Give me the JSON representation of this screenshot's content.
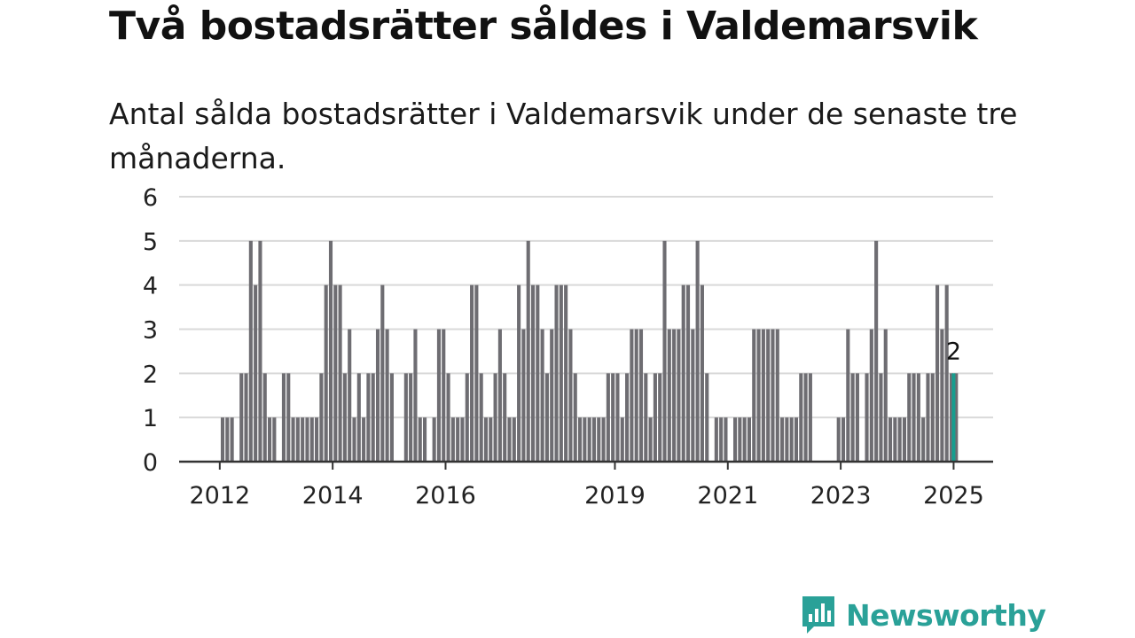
{
  "title": "Två bostadsrätter såldes i Valdemarsvik",
  "subtitle": "Antal sålda bostadsrätter i Valdemarsvik under de senaste tre månaderna.",
  "brand": {
    "name": "Newsworthy",
    "color": "#2aa198",
    "icon": "newsworthy-chart-bubble-icon"
  },
  "colors": {
    "bar": "#6e6d72",
    "highlight": "#179e8f",
    "grid": "#d9d9d9",
    "axis": "#333333"
  },
  "chart_data": {
    "type": "bar",
    "ylim": [
      0,
      6
    ],
    "yticks": [
      0,
      1,
      2,
      3,
      4,
      5,
      6
    ],
    "xticks": [
      2012,
      2014,
      2016,
      2019,
      2021,
      2023,
      2025
    ],
    "xlim": [
      2011.28,
      2025.7
    ],
    "grid": true,
    "x_start": 2012.05,
    "x_step": 0.0833,
    "values": [
      1,
      1,
      1,
      0,
      2,
      2,
      5,
      4,
      5,
      2,
      1,
      1,
      0,
      2,
      2,
      1,
      1,
      1,
      1,
      1,
      1,
      2,
      4,
      5,
      4,
      4,
      2,
      3,
      1,
      2,
      1,
      2,
      2,
      3,
      4,
      3,
      2,
      0,
      0,
      2,
      2,
      3,
      1,
      1,
      0,
      1,
      3,
      3,
      2,
      1,
      1,
      1,
      2,
      4,
      4,
      2,
      1,
      1,
      2,
      3,
      2,
      1,
      1,
      4,
      3,
      5,
      4,
      4,
      3,
      2,
      3,
      4,
      4,
      4,
      3,
      2,
      1,
      1,
      1,
      1,
      1,
      1,
      2,
      2,
      2,
      1,
      2,
      3,
      3,
      3,
      2,
      1,
      2,
      2,
      5,
      3,
      3,
      3,
      4,
      4,
      3,
      5,
      4,
      2,
      0,
      1,
      1,
      1,
      0,
      1,
      1,
      1,
      1,
      3,
      3,
      3,
      3,
      3,
      3,
      1,
      1,
      1,
      1,
      2,
      2,
      2,
      0,
      0,
      0,
      0,
      0,
      1,
      1,
      3,
      2,
      2,
      0,
      2,
      3,
      5,
      2,
      3,
      1,
      1,
      1,
      1,
      2,
      2,
      2,
      1,
      2,
      2,
      4,
      3,
      4,
      2,
      2
    ],
    "highlight": {
      "x": 2025.0,
      "value": 2,
      "label": "2"
    }
  }
}
